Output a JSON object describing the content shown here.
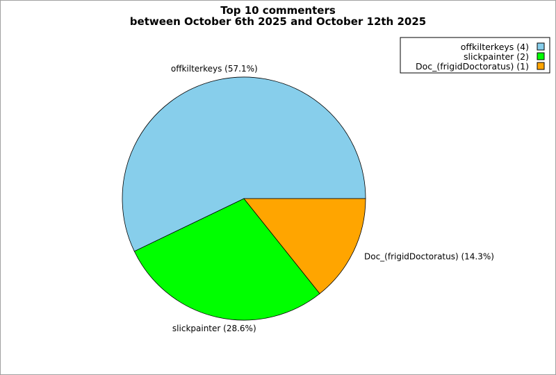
{
  "chart_data": {
    "type": "pie",
    "title": [
      "Top 10 commenters",
      "between October 6th 2025 and October 12th 2025"
    ],
    "slices": [
      {
        "name": "offkilterkeys",
        "value": 4,
        "percent_label": "offkilterkeys (57.1%)",
        "legend_label": "offkilterkeys (4)",
        "color": "#87ceeb"
      },
      {
        "name": "slickpainter",
        "value": 2,
        "percent_label": "slickpainter (28.6%)",
        "legend_label": "slickpainter (2)",
        "color": "#00ff00"
      },
      {
        "name": "Doc_(frigidDoctoratus)",
        "value": 1,
        "percent_label": "Doc_(frigidDoctoratus) (14.3%)",
        "legend_label": "Doc_(frigidDoctoratus) (1)",
        "color": "#ffa500"
      }
    ],
    "legend_position": "top-right",
    "start_angle_deg": 0,
    "direction": "counterclockwise"
  }
}
